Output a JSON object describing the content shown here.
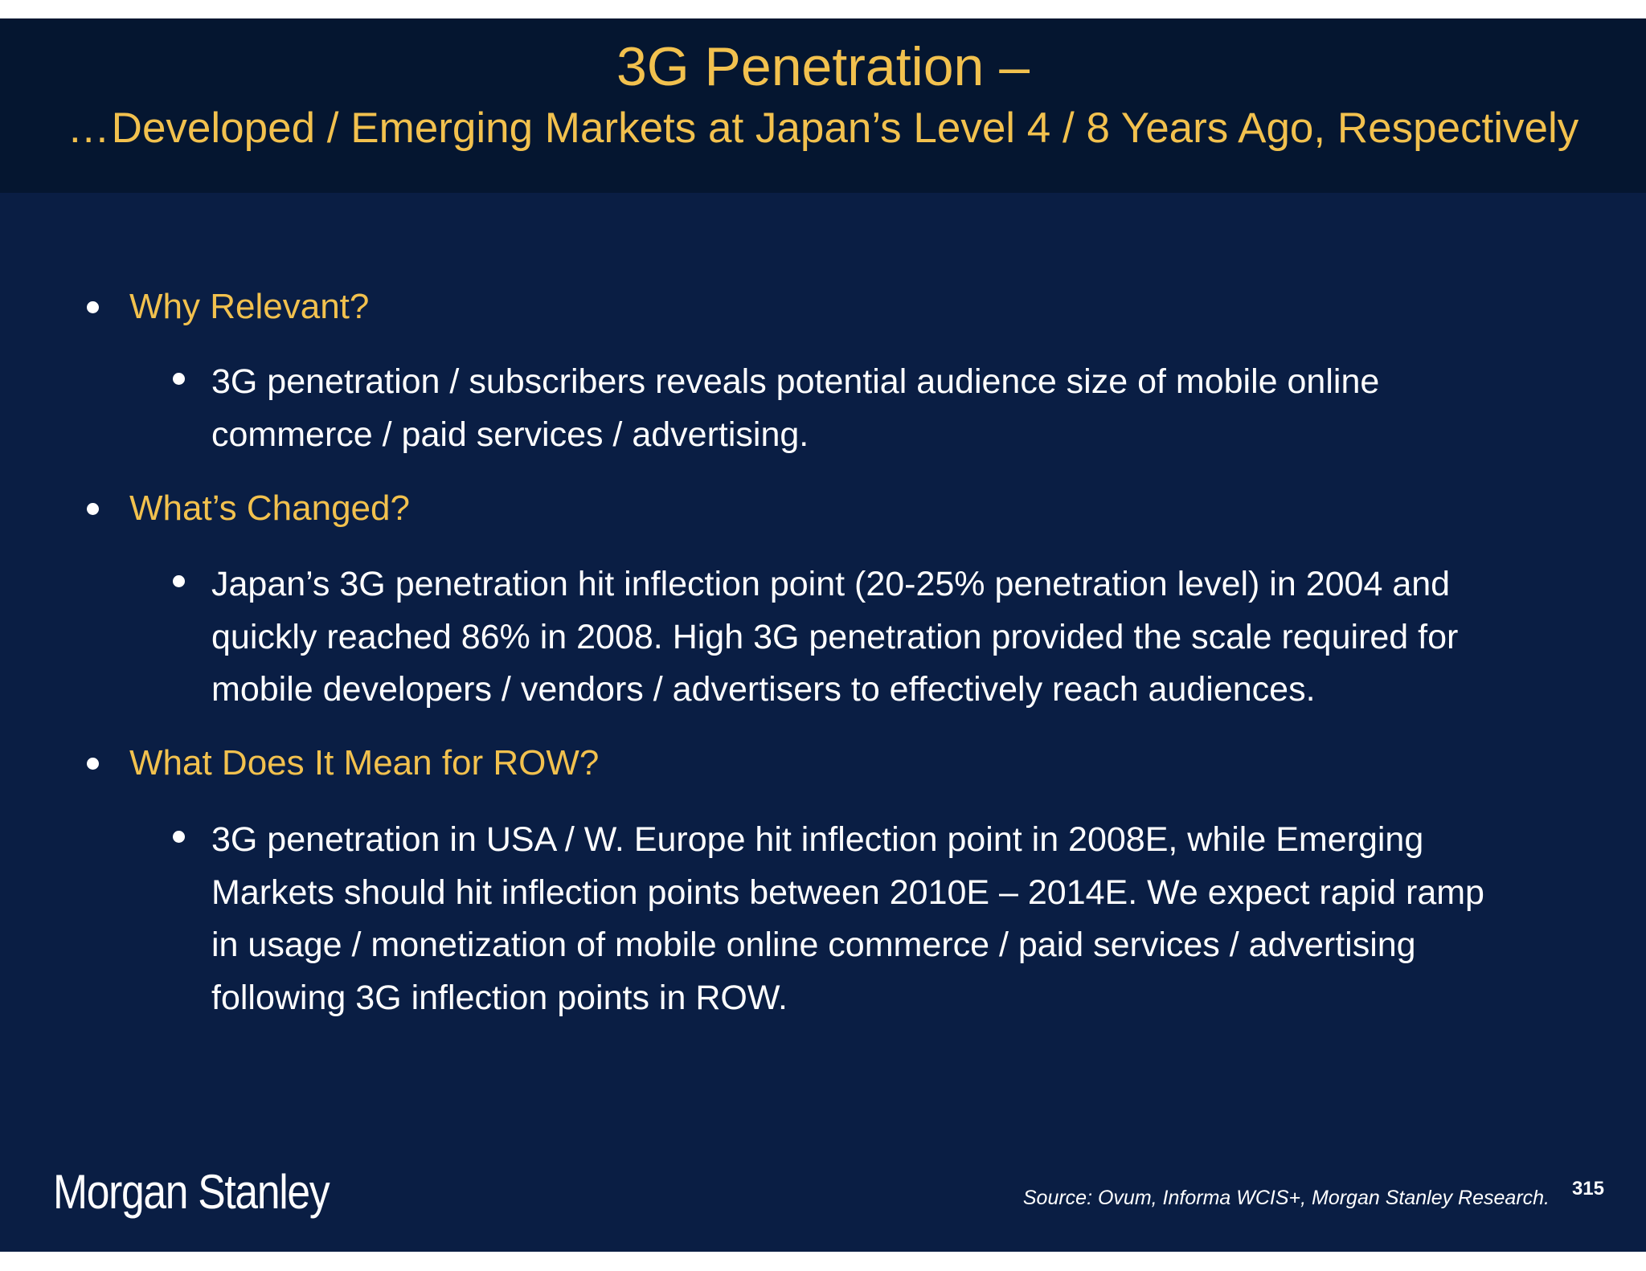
{
  "header": {
    "title": "3G Penetration –",
    "subtitle_ellipsis": "…",
    "subtitle": "Developed / Emerging Markets at Japan’s Level 4 / 8 Years Ago, Respectively"
  },
  "sections": [
    {
      "heading": "Why Relevant?",
      "points": [
        {
          "lines": [
            "3G penetration / subscribers reveals potential audience size of mobile online",
            "commerce / paid services / advertising."
          ]
        }
      ]
    },
    {
      "heading": "What’s Changed?",
      "points": [
        {
          "lines": [
            "Japan’s 3G penetration hit inflection point (20-25% penetration level) in 2004 and",
            "quickly reached 86% in 2008. High 3G penetration provided the scale required for",
            "mobile developers / vendors / advertisers to effectively reach audiences."
          ]
        }
      ]
    },
    {
      "heading": "What Does It Mean for ROW?",
      "points": [
        {
          "lines": [
            "3G penetration in USA / W. Europe hit inflection point in 2008E, while Emerging",
            "Markets should hit inflection points between 2010E – 2014E. We expect rapid ramp",
            "in usage / monetization of mobile online commerce / paid services / advertising",
            "following 3G inflection points in ROW."
          ]
        }
      ]
    }
  ],
  "footer": {
    "logo": "Morgan Stanley",
    "source": "Source: Ovum, Informa WCIS+, Morgan Stanley Research.",
    "page_number": "315"
  },
  "colors": {
    "background": "#0a1e44",
    "header_background": "#051630",
    "accent": "#f2c14e",
    "text": "#ffffff"
  }
}
